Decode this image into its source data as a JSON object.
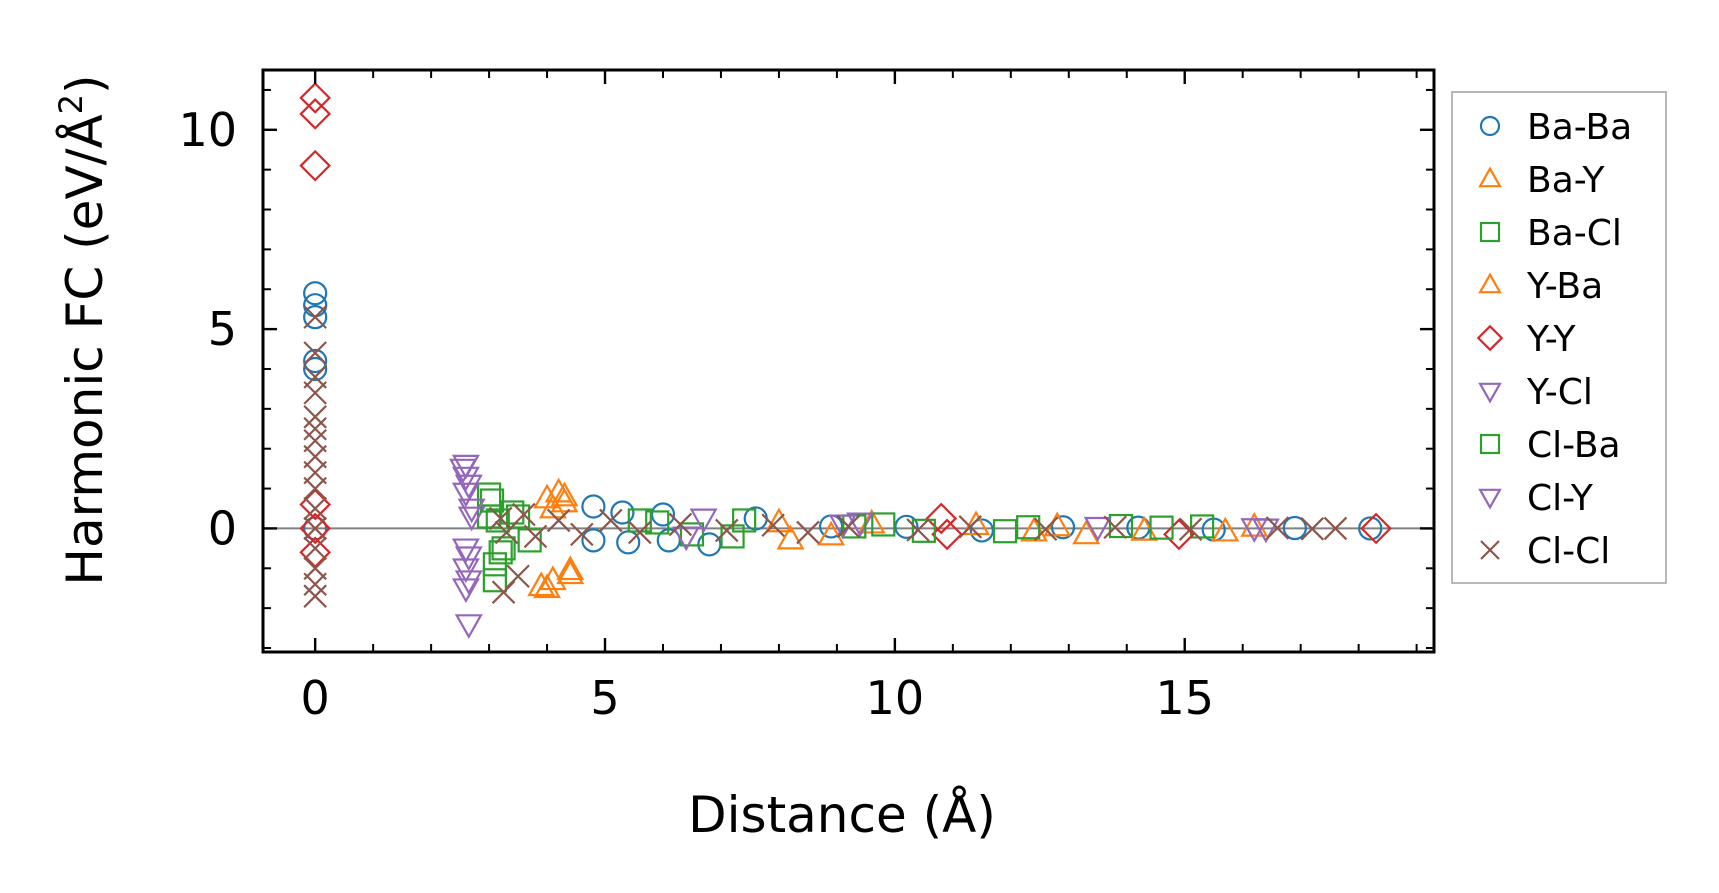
{
  "chart_data": {
    "type": "scatter",
    "xlabel": "Distance (Å)",
    "ylabel_main": "Harmonic FC (eV/Å",
    "ylabel_sup": "2",
    "ylabel_close": ")",
    "xlim": [
      -0.9,
      19.3
    ],
    "ylim": [
      -3.1,
      11.5
    ],
    "x_ticks": [
      0,
      5,
      10,
      15
    ],
    "x_tick_labels": [
      "0",
      "5",
      "10",
      "15"
    ],
    "y_ticks": [
      0,
      5,
      10
    ],
    "y_tick_labels": [
      "0",
      "5",
      "10"
    ],
    "x_minor_step": 1,
    "y_minor_step": 1,
    "zero_line": true,
    "grid": false,
    "legend_position": "outside-right",
    "series": [
      {
        "name": "Ba-Ba",
        "marker": "circle",
        "fill": false,
        "color": "#1f77b4",
        "x": [
          0,
          0,
          0,
          0,
          0,
          0,
          4.8,
          4.8,
          5.3,
          5.4,
          6.0,
          6.1,
          6.8,
          7.6,
          8.9,
          10.2,
          11.5,
          12.9,
          14.2,
          15.5,
          16.9,
          18.2
        ],
        "y": [
          5.9,
          5.6,
          5.3,
          4.2,
          4.0,
          0.0,
          0.55,
          -0.3,
          0.4,
          -0.35,
          0.35,
          -0.3,
          -0.4,
          0.25,
          0.05,
          0.04,
          -0.05,
          0.03,
          0.02,
          -0.03,
          0.01,
          0.0
        ]
      },
      {
        "name": "Ba-Y",
        "marker": "triangle-up",
        "fill": false,
        "color": "#ff7f0e",
        "x": [
          4.0,
          4.2,
          4.3,
          3.9,
          4.1,
          4.4,
          8.2,
          9.6,
          12.4,
          13.3,
          15.7
        ],
        "y": [
          0.75,
          0.9,
          0.65,
          -1.45,
          -1.3,
          -1.05,
          -0.28,
          0.12,
          -0.08,
          -0.15,
          -0.08
        ]
      },
      {
        "name": "Ba-Cl",
        "marker": "square",
        "fill": false,
        "color": "#2ca02c",
        "x": [
          3.0,
          3.1,
          3.0,
          3.2,
          3.4,
          3.7,
          5.6,
          6.5,
          7.4,
          9.8,
          11.9,
          13.9,
          15.3
        ],
        "y": [
          0.85,
          -1.3,
          0.3,
          -0.6,
          0.4,
          -0.3,
          0.2,
          -0.15,
          0.2,
          0.1,
          -0.07,
          0.06,
          0.05
        ]
      },
      {
        "name": "Y-Ba",
        "marker": "triangle-up",
        "fill": false,
        "color": "#ff7f0e",
        "x": [
          4.1,
          4.3,
          4.0,
          4.4,
          8.0,
          8.9,
          11.4,
          12.8,
          14.3,
          16.2
        ],
        "y": [
          0.5,
          0.8,
          -1.5,
          -1.15,
          0.15,
          -0.18,
          0.08,
          0.05,
          -0.06,
          0.04
        ]
      },
      {
        "name": "Y-Y",
        "marker": "diamond",
        "fill": false,
        "color": "#d62728",
        "x": [
          0,
          0,
          0,
          0,
          0,
          0,
          10.8,
          10.9,
          14.9,
          18.3
        ],
        "y": [
          10.8,
          10.4,
          9.1,
          0.6,
          0.0,
          -0.6,
          0.25,
          -0.15,
          -0.15,
          0.0
        ]
      },
      {
        "name": "Y-Cl",
        "marker": "triangle-down",
        "fill": false,
        "color": "#9467bd",
        "x": [
          2.6,
          2.6,
          2.6,
          2.7,
          2.65,
          2.6,
          2.6,
          2.65,
          6.7,
          9.4,
          13.5,
          16.4
        ],
        "y": [
          1.6,
          1.3,
          0.9,
          0.3,
          -0.7,
          -1.0,
          -1.5,
          -2.4,
          0.25,
          0.15,
          0.04,
          0.0
        ]
      },
      {
        "name": "Cl-Ba",
        "marker": "square",
        "fill": false,
        "color": "#2ca02c",
        "x": [
          3.05,
          3.1,
          3.15,
          3.25,
          3.5,
          5.9,
          7.2,
          9.3,
          10.5,
          12.3,
          14.6
        ],
        "y": [
          0.7,
          -0.9,
          0.2,
          -0.5,
          0.3,
          0.15,
          -0.2,
          0.05,
          -0.06,
          0.03,
          0.02
        ]
      },
      {
        "name": "Cl-Y",
        "marker": "triangle-down",
        "fill": false,
        "color": "#9467bd",
        "x": [
          2.55,
          2.65,
          2.7,
          2.6,
          2.65,
          6.4,
          9.1,
          16.2
        ],
        "y": [
          1.5,
          1.1,
          0.5,
          -0.5,
          -1.3,
          -0.2,
          0.1,
          0.01
        ]
      },
      {
        "name": "Cl-Cl",
        "marker": "x",
        "fill": false,
        "color": "#8c564b",
        "x": [
          0,
          0,
          0,
          0,
          0,
          0,
          0,
          0,
          0,
          0,
          0,
          0,
          0,
          0,
          0,
          0,
          3.2,
          3.3,
          3.25,
          3.5,
          3.6,
          3.8,
          4.2,
          4.6,
          5.1,
          5.6,
          6.3,
          7.1,
          7.9,
          8.5,
          9.2,
          10.4,
          11.3,
          12.6,
          13.8,
          15.1,
          16.6,
          17.2,
          17.6
        ],
        "y": [
          5.3,
          4.4,
          3.8,
          3.4,
          2.8,
          2.5,
          2.2,
          1.8,
          1.4,
          1.0,
          0.5,
          0.0,
          -0.5,
          -1.0,
          -1.4,
          -1.7,
          0.25,
          -0.1,
          -1.6,
          -1.2,
          0.35,
          -0.2,
          0.2,
          -0.15,
          0.2,
          -0.1,
          0.1,
          -0.05,
          0.08,
          -0.1,
          0.05,
          -0.04,
          0.04,
          -0.02,
          0.03,
          -0.02,
          0.01,
          -0.01,
          0.0
        ]
      }
    ]
  }
}
